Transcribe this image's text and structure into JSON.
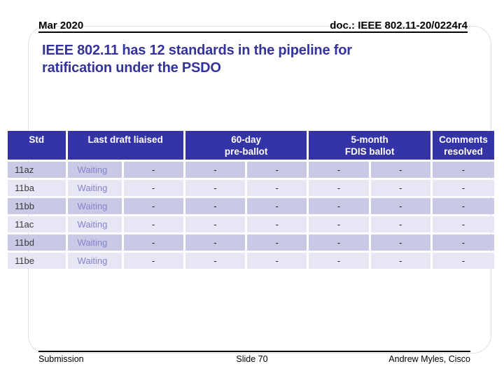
{
  "header": {
    "date": "Mar 2020",
    "doc": "doc.: IEEE 802.11-20/0224r4"
  },
  "title": {
    "line1": "IEEE 802.11 has 12 standards in the pipeline for",
    "line2": "ratification under the PSDO"
  },
  "table": {
    "header_cells": [
      {
        "label": "Std",
        "span": 1
      },
      {
        "label": "Last draft liaised",
        "span": 2
      },
      {
        "label": "60-day\npre-ballot",
        "span": 2
      },
      {
        "label": "5-month\nFDIS ballot",
        "span": 2
      },
      {
        "label": "Comments\nresolved",
        "span": 1
      }
    ],
    "rows": [
      {
        "std": "11az",
        "values": [
          "Waiting",
          "-",
          "-",
          "-",
          "-",
          "-",
          "-"
        ]
      },
      {
        "std": "11ba",
        "values": [
          "Waiting",
          "-",
          "-",
          "-",
          "-",
          "-",
          "-"
        ]
      },
      {
        "std": "11bb",
        "values": [
          "Waiting",
          "-",
          "-",
          "-",
          "-",
          "-",
          "-"
        ]
      },
      {
        "std": "11ac",
        "values": [
          "Waiting",
          "-",
          "-",
          "-",
          "-",
          "-",
          "-"
        ]
      },
      {
        "std": "11bd",
        "values": [
          "Waiting",
          "-",
          "-",
          "-",
          "-",
          "-",
          "-"
        ]
      },
      {
        "std": "11be",
        "values": [
          "Waiting",
          "-",
          "-",
          "-",
          "-",
          "-",
          "-"
        ]
      }
    ]
  },
  "footer": {
    "left": "Submission",
    "center": "Slide 70",
    "right": "Andrew Myles, Cisco"
  },
  "colors": {
    "title_text": "#333399",
    "table_header_bg": "#3434a6",
    "table_header_text": "#ffffff",
    "row_odd_bg": "#c9c9e6",
    "row_even_bg": "#e6e6f4",
    "waiting_text": "#8484cf",
    "rule": "#000000"
  }
}
